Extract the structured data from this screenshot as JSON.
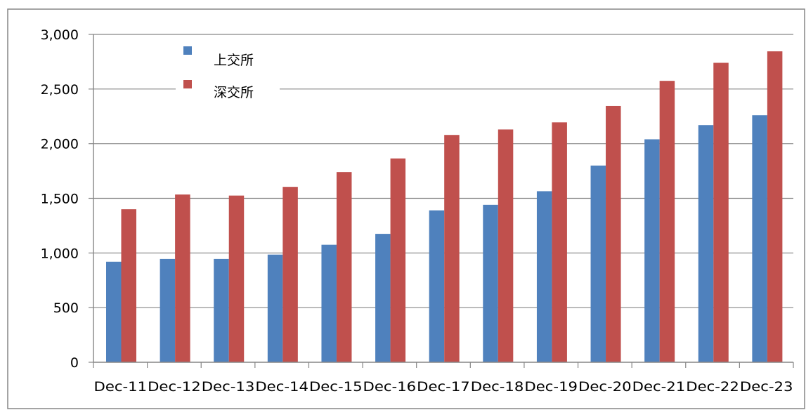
{
  "chart_data": {
    "type": "bar",
    "categories": [
      "Dec-11",
      "Dec-12",
      "Dec-13",
      "Dec-14",
      "Dec-15",
      "Dec-16",
      "Dec-17",
      "Dec-18",
      "Dec-19",
      "Dec-20",
      "Dec-21",
      "Dec-22",
      "Dec-23"
    ],
    "series": [
      {
        "name": "上交所",
        "color": "#4f81bd",
        "values": [
          920,
          945,
          945,
          985,
          1075,
          1175,
          1390,
          1440,
          1565,
          1800,
          2040,
          2170,
          2260
        ]
      },
      {
        "name": "深交所",
        "color": "#c0504d",
        "values": [
          1400,
          1535,
          1525,
          1605,
          1740,
          1865,
          2080,
          2130,
          2195,
          2345,
          2575,
          2740,
          2845
        ]
      }
    ],
    "ylim": [
      0,
      3000
    ],
    "yticks": [
      0,
      500,
      1000,
      1500,
      2000,
      2500,
      3000
    ],
    "ytick_labels": [
      "0",
      "500",
      "1,000",
      "1,500",
      "2,000",
      "2,500",
      "3,000"
    ],
    "grid": true,
    "legend": "top-left",
    "title": "",
    "xlabel": "",
    "ylabel": ""
  }
}
